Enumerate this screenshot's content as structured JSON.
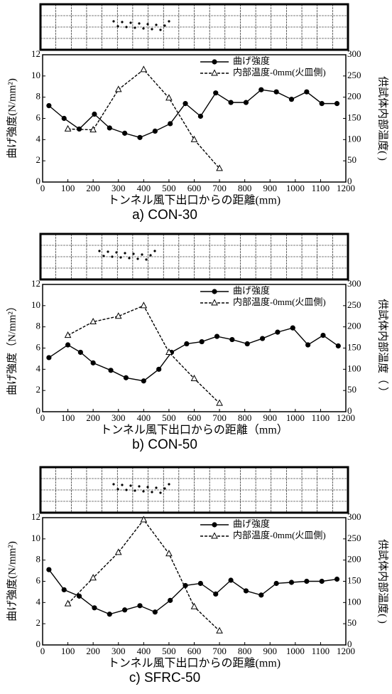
{
  "chart_data": [
    {
      "type": "line",
      "title": "a) CON-30",
      "x_label": "トンネル風下出口からの距離(mm)",
      "y_label": "曲げ強度(N/mm²)",
      "y2_label": "供試体内部温度(  )",
      "xlim": [
        0,
        1200
      ],
      "xticks": [
        0,
        100,
        200,
        300,
        400,
        500,
        600,
        700,
        800,
        900,
        1000,
        1100,
        1200
      ],
      "ylim": [
        0,
        12
      ],
      "yticks": [
        0,
        2,
        4,
        6,
        8,
        10,
        12
      ],
      "y2lim": [
        0,
        300
      ],
      "y2ticks": [
        0,
        50,
        100,
        150,
        200,
        250,
        300
      ],
      "legend": "upper right",
      "series": [
        {
          "name": "曲げ強度",
          "color": "#000000",
          "marker": "circle",
          "linestyle": "solid",
          "x": [
            25,
            85,
            145,
            205,
            265,
            325,
            385,
            445,
            505,
            565,
            625,
            685,
            745,
            805,
            865,
            925,
            985,
            1045,
            1105,
            1165
          ],
          "values": [
            7.2,
            6.0,
            5.0,
            6.4,
            5.1,
            4.6,
            4.2,
            4.8,
            5.5,
            7.4,
            6.2,
            8.4,
            7.5,
            7.5,
            8.7,
            8.5,
            7.8,
            8.5,
            7.4,
            7.4
          ]
        },
        {
          "name": "内部温度-0mm(火皿側)",
          "color": "#000000",
          "marker": "triangle",
          "linestyle": "dashed",
          "axis": "y2",
          "x": [
            100,
            200,
            300,
            400,
            500,
            600,
            700
          ],
          "values": [
            125,
            123,
            218,
            265,
            198,
            100,
            32
          ]
        }
      ]
    },
    {
      "type": "line",
      "title": "b) CON-50",
      "x_label": "トンネル風下出口からの距離（mm）",
      "y_label": "曲げ強度（N/mm²）",
      "y2_label": "供試体内部温度（  ）",
      "xlim": [
        0,
        1200
      ],
      "xticks": [
        0,
        100,
        200,
        300,
        400,
        500,
        600,
        700,
        800,
        900,
        1000,
        1100,
        1200
      ],
      "ylim": [
        0,
        12
      ],
      "yticks": [
        0,
        2,
        4,
        6,
        8,
        10,
        12
      ],
      "y2lim": [
        0,
        300
      ],
      "y2ticks": [
        0,
        50,
        100,
        150,
        200,
        250,
        300
      ],
      "legend": "upper right",
      "series": [
        {
          "name": "曲げ強度",
          "color": "#000000",
          "marker": "circle",
          "linestyle": "solid",
          "x": [
            25,
            100,
            150,
            200,
            270,
            330,
            400,
            460,
            510,
            570,
            630,
            690,
            750,
            810,
            870,
            930,
            990,
            1050,
            1110,
            1170
          ],
          "values": [
            5.1,
            6.3,
            5.6,
            4.6,
            3.9,
            3.2,
            2.9,
            4.0,
            5.6,
            6.4,
            6.6,
            7.1,
            6.8,
            6.4,
            6.9,
            7.5,
            7.9,
            6.3,
            7.2,
            6.2
          ]
        },
        {
          "name": "内部温度-0mm(火皿側)",
          "color": "#000000",
          "marker": "triangle",
          "linestyle": "dashed",
          "axis": "y2",
          "x": [
            100,
            200,
            300,
            400,
            500,
            600,
            700
          ],
          "values": [
            180,
            212,
            225,
            250,
            140,
            78,
            20
          ]
        }
      ]
    },
    {
      "type": "line",
      "title": "c)  SFRC-50",
      "x_label": "トンネル風下出口からの距離(mm)",
      "y_label": "曲げ強度(N/mm²)",
      "y2_label": "供試体内部温度(  )",
      "xlim": [
        0,
        1200
      ],
      "xticks": [
        0,
        100,
        200,
        300,
        400,
        500,
        600,
        700,
        800,
        900,
        1000,
        1100,
        1200
      ],
      "ylim": [
        0,
        12
      ],
      "yticks": [
        0,
        2,
        4,
        6,
        8,
        10,
        12
      ],
      "y2lim": [
        0,
        300
      ],
      "y2ticks": [
        0,
        50,
        100,
        150,
        200,
        250,
        300
      ],
      "legend": "upper right",
      "series": [
        {
          "name": "曲げ強度",
          "color": "#000000",
          "marker": "circle",
          "linestyle": "solid",
          "x": [
            25,
            85,
            145,
            205,
            265,
            325,
            385,
            445,
            505,
            565,
            625,
            685,
            745,
            805,
            865,
            925,
            985,
            1045,
            1105,
            1165
          ],
          "values": [
            7.1,
            5.2,
            4.6,
            3.5,
            2.9,
            3.3,
            3.7,
            3.1,
            4.2,
            5.6,
            5.8,
            4.8,
            6.1,
            5.1,
            4.7,
            5.8,
            5.9,
            6.0,
            6.0,
            6.2
          ]
        },
        {
          "name": "内部温度-0mm(火皿側)",
          "color": "#000000",
          "marker": "triangle",
          "linestyle": "dashed",
          "axis": "y2",
          "x": [
            100,
            200,
            300,
            400,
            500,
            600,
            700
          ],
          "values": [
            97,
            158,
            218,
            295,
            215,
            90,
            33
          ]
        }
      ]
    }
  ]
}
